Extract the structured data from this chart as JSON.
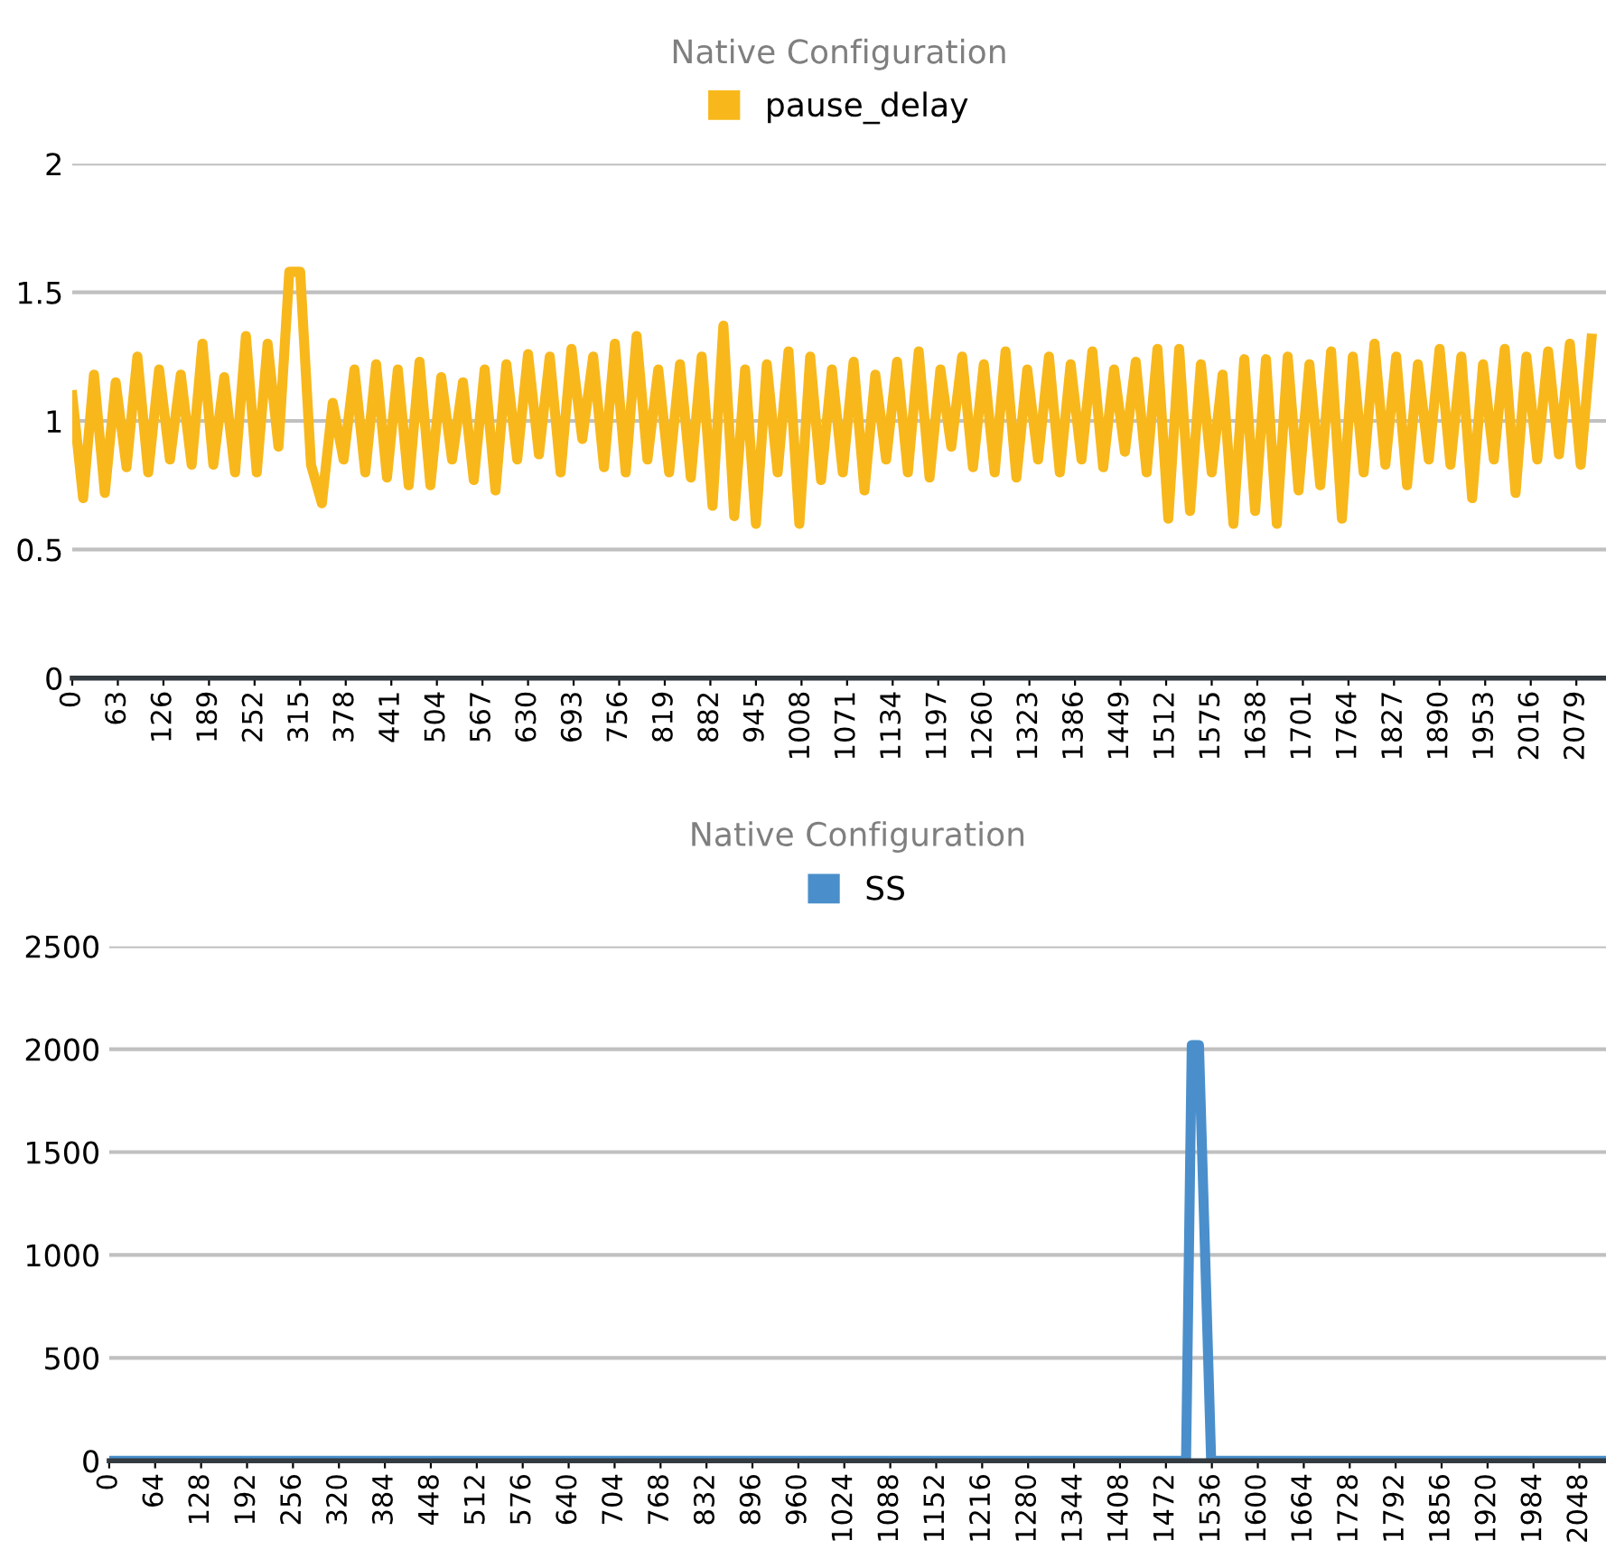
{
  "chart_data": [
    {
      "type": "line",
      "title": "Native Configuration",
      "legend": "top",
      "grid": "y",
      "marker": "none",
      "line_style": "solid",
      "x": [
        0,
        15,
        30,
        45,
        60,
        75,
        90,
        105,
        120,
        135,
        150,
        165,
        180,
        195,
        210,
        225,
        240,
        255,
        270,
        285,
        300,
        315,
        330,
        345,
        360,
        375,
        390,
        405,
        420,
        435,
        450,
        465,
        480,
        495,
        510,
        525,
        540,
        555,
        570,
        585,
        600,
        615,
        630,
        645,
        660,
        675,
        690,
        705,
        720,
        735,
        750,
        765,
        780,
        795,
        810,
        825,
        840,
        855,
        870,
        885,
        900,
        915,
        930,
        945,
        960,
        975,
        990,
        1005,
        1020,
        1035,
        1050,
        1065,
        1080,
        1095,
        1110,
        1125,
        1140,
        1155,
        1170,
        1185,
        1200,
        1215,
        1230,
        1245,
        1260,
        1275,
        1290,
        1305,
        1320,
        1335,
        1350,
        1365,
        1380,
        1395,
        1410,
        1425,
        1440,
        1455,
        1470,
        1485,
        1500,
        1515,
        1530,
        1545,
        1560,
        1575,
        1590,
        1605,
        1620,
        1635,
        1650,
        1665,
        1680,
        1695,
        1710,
        1725,
        1740,
        1755,
        1770,
        1785,
        1800,
        1815,
        1830,
        1845,
        1860,
        1875,
        1890,
        1905,
        1920,
        1935,
        1950,
        1965,
        1980,
        1995,
        2010,
        2025,
        2040,
        2055,
        2070,
        2085,
        2100
      ],
      "xlim": [
        0,
        2120
      ],
      "xticks": [
        0,
        63,
        126,
        189,
        252,
        315,
        378,
        441,
        504,
        567,
        630,
        693,
        756,
        819,
        882,
        945,
        1008,
        1071,
        1134,
        1197,
        1260,
        1323,
        1386,
        1449,
        1512,
        1575,
        1638,
        1701,
        1764,
        1827,
        1890,
        1953,
        2016,
        2079
      ],
      "ylim": [
        0,
        2
      ],
      "yticks": [
        0,
        0.5,
        1,
        1.5,
        2
      ],
      "series": [
        {
          "name": "pause_delay",
          "color": "#f8b81c",
          "values": [
            1.1,
            0.7,
            1.18,
            0.72,
            1.15,
            0.82,
            1.25,
            0.8,
            1.2,
            0.85,
            1.18,
            0.83,
            1.3,
            0.83,
            1.17,
            0.8,
            1.33,
            0.8,
            1.3,
            0.9,
            1.58,
            1.58,
            0.83,
            0.68,
            1.07,
            0.85,
            1.2,
            0.8,
            1.22,
            0.78,
            1.2,
            0.75,
            1.23,
            0.75,
            1.17,
            0.85,
            1.15,
            0.77,
            1.2,
            0.73,
            1.22,
            0.85,
            1.26,
            0.87,
            1.25,
            0.8,
            1.28,
            0.93,
            1.25,
            0.82,
            1.3,
            0.8,
            1.33,
            0.85,
            1.2,
            0.8,
            1.22,
            0.78,
            1.25,
            0.67,
            1.37,
            0.63,
            1.2,
            0.6,
            1.22,
            0.8,
            1.27,
            0.6,
            1.25,
            0.77,
            1.2,
            0.8,
            1.23,
            0.73,
            1.18,
            0.85,
            1.23,
            0.8,
            1.27,
            0.78,
            1.2,
            0.9,
            1.25,
            0.82,
            1.22,
            0.8,
            1.27,
            0.78,
            1.2,
            0.85,
            1.25,
            0.8,
            1.22,
            0.85,
            1.27,
            0.82,
            1.2,
            0.88,
            1.23,
            0.8,
            1.28,
            0.62,
            1.28,
            0.65,
            1.22,
            0.8,
            1.18,
            0.6,
            1.24,
            0.65,
            1.24,
            0.6,
            1.25,
            0.73,
            1.22,
            0.75,
            1.27,
            0.62,
            1.25,
            0.8,
            1.3,
            0.83,
            1.25,
            0.75,
            1.22,
            0.85,
            1.28,
            0.83,
            1.25,
            0.7,
            1.22,
            0.85,
            1.28,
            0.72,
            1.25,
            0.85,
            1.27,
            0.87,
            1.3,
            0.83,
            1.32
          ]
        }
      ]
    },
    {
      "type": "line",
      "title": "Native Configuration",
      "legend": "top",
      "grid": "y",
      "marker": "none",
      "line_style": "solid",
      "x": [
        0,
        350,
        700,
        704,
        1050,
        1408,
        1412,
        1470,
        1500,
        1508,
        1518,
        1535,
        1800,
        2080
      ],
      "xlim": [
        0,
        2085
      ],
      "xticks": [
        0,
        64,
        128,
        192,
        256,
        320,
        384,
        448,
        512,
        576,
        640,
        704,
        768,
        832,
        896,
        960,
        1024,
        1088,
        1152,
        1216,
        1280,
        1344,
        1408,
        1472,
        1536,
        1600,
        1664,
        1728,
        1792,
        1856,
        1920,
        1984,
        2048
      ],
      "ylim": [
        0,
        2500
      ],
      "yticks": [
        0,
        500,
        1000,
        1500,
        2000,
        2500
      ],
      "series": [
        {
          "name": "SS",
          "color": "#4a8fcb",
          "values": [
            0,
            0,
            0,
            0,
            0,
            0,
            0,
            0,
            0,
            2020,
            2020,
            0,
            0,
            0
          ]
        }
      ]
    }
  ]
}
